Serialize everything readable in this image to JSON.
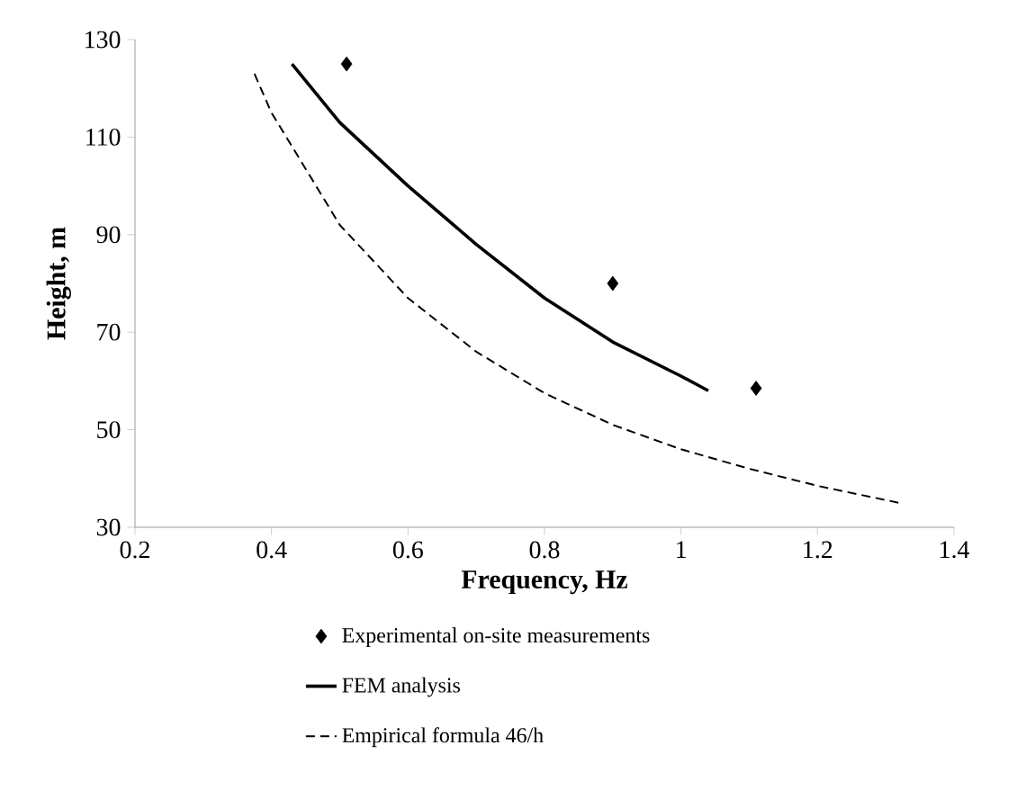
{
  "chart_data": {
    "type": "line",
    "xlabel": "Frequency, Hz",
    "ylabel": "Height, m",
    "xlim": [
      0.2,
      1.4
    ],
    "xticks": [
      0.2,
      0.4,
      0.6,
      0.8,
      1,
      1.2,
      1.4
    ],
    "ylim": [
      30,
      130
    ],
    "yticks": [
      30,
      50,
      70,
      90,
      110,
      130
    ],
    "legend": "bottom",
    "grid": false,
    "series": [
      {
        "name": "Experimental on-site measurements",
        "type": "scatter",
        "marker": "diamond",
        "color": "#000000",
        "x": [
          0.51,
          0.9,
          1.11
        ],
        "values": [
          125,
          80,
          58.5
        ]
      },
      {
        "name": "FEM analysis",
        "line_style": "solid",
        "color": "#000000",
        "x": [
          0.43,
          0.5,
          0.6,
          0.7,
          0.8,
          0.9,
          1.0,
          1.04
        ],
        "values": [
          125,
          113,
          100,
          88,
          77,
          68,
          61,
          58
        ]
      },
      {
        "name": "Empirical formula 46/h",
        "line_style": "dashed",
        "color": "#000000",
        "x": [
          0.375,
          0.4,
          0.5,
          0.6,
          0.7,
          0.8,
          0.9,
          1.0,
          1.1,
          1.2,
          1.32
        ],
        "values": [
          123,
          115,
          92,
          77,
          66,
          57.5,
          51,
          46,
          42,
          38.5,
          35
        ]
      }
    ]
  }
}
